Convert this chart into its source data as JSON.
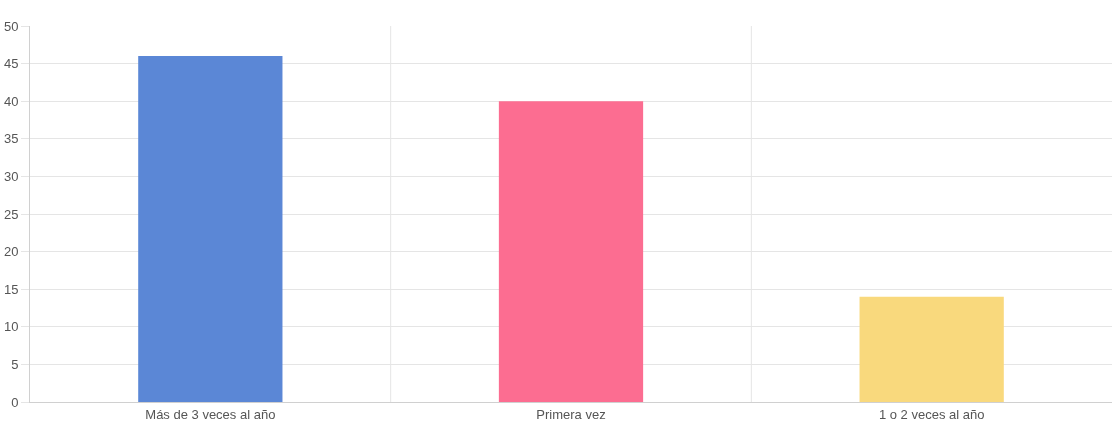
{
  "chart_data": {
    "type": "bar",
    "categories": [
      "Más de 3 veces al año",
      "Primera vez",
      "1 o 2 veces al año"
    ],
    "values": [
      46,
      40,
      14
    ],
    "colors": [
      "#5b87d6",
      "#fc6d91",
      "#f9d97d"
    ],
    "ylim": [
      0,
      50
    ],
    "yticks": [
      0,
      5,
      10,
      15,
      20,
      25,
      30,
      35,
      40,
      45,
      50
    ],
    "grid": true
  }
}
